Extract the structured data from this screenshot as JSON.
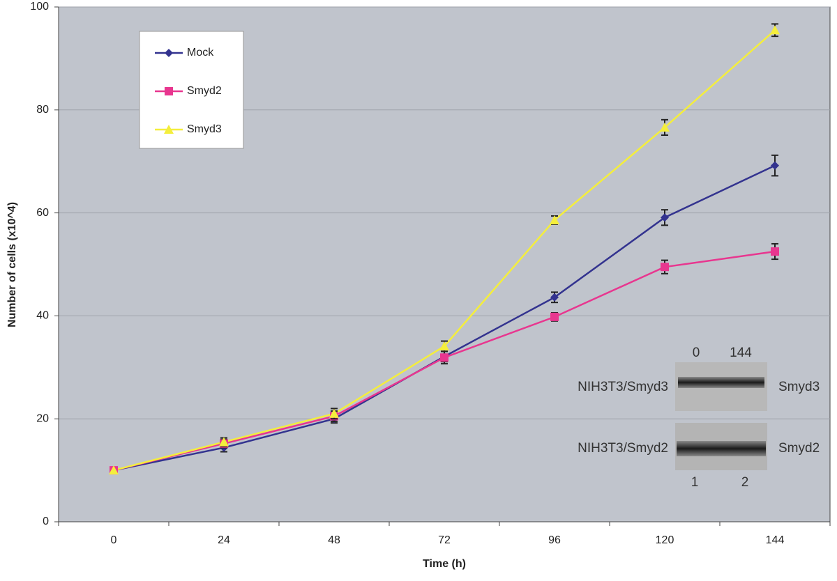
{
  "chart_data": {
    "type": "line",
    "x_label": "Time (h)",
    "y_label": "Number of cells (x10^4)",
    "categories": [
      "0",
      "24",
      "48",
      "72",
      "96",
      "120",
      "144"
    ],
    "series": [
      {
        "name": "Mock",
        "color": "#33338f",
        "marker": "diamond",
        "values": [
          10,
          14.4,
          20,
          32.1,
          43.6,
          59.1,
          69.2
        ],
        "errors": [
          null,
          0.8,
          0.8,
          1.0,
          1.0,
          1.5,
          2.0
        ]
      },
      {
        "name": "Smyd2",
        "color": "#e8368f",
        "marker": "square",
        "values": [
          10,
          15.2,
          20.5,
          31.9,
          39.8,
          49.5,
          52.5
        ],
        "errors": [
          null,
          0.8,
          1.0,
          1.2,
          0.8,
          1.3,
          1.5
        ]
      },
      {
        "name": "Smyd3",
        "color": "#f4ee3c",
        "marker": "triangle",
        "values": [
          10,
          15.5,
          21,
          34.1,
          58.6,
          76.6,
          95.5
        ],
        "errors": [
          null,
          0.8,
          1.0,
          1.0,
          0.8,
          1.5,
          1.2
        ]
      }
    ],
    "ylim": [
      0,
      100
    ],
    "yticks": [
      0,
      20,
      40,
      60,
      80,
      100
    ],
    "grid": true,
    "legend": "upper left",
    "inset": {
      "lanes_top": [
        "0",
        "144"
      ],
      "lanes_bottom": [
        "1",
        "2"
      ],
      "rows": [
        {
          "cell_line": "NIH3T3/Smyd3",
          "protein": "Smyd3"
        },
        {
          "cell_line": "NIH3T3/Smyd2",
          "protein": "Smyd2"
        }
      ]
    }
  }
}
